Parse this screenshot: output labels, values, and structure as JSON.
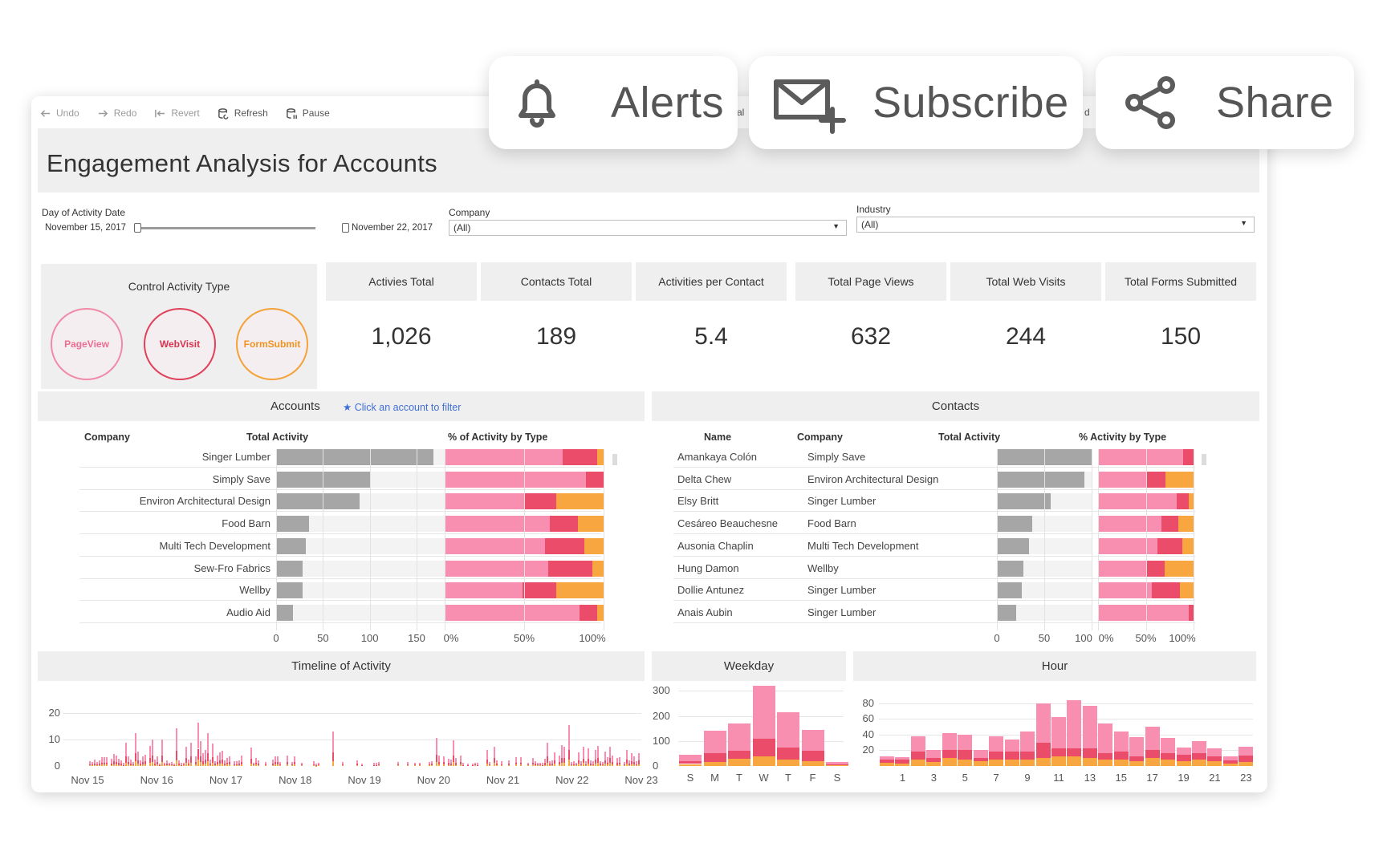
{
  "toolbar": {
    "undo": "Undo",
    "redo": "Redo",
    "revert": "Revert",
    "refresh": "Refresh",
    "pause": "Pause",
    "hidden_fragment_1": "al",
    "hidden_fragment_2": "d"
  },
  "actions": {
    "alerts": "Alerts",
    "subscribe": "Subscribe",
    "share": "Share"
  },
  "dashboard_title": "Engagement Analysis for Accounts",
  "filters": {
    "date_label": "Day of Activity Date",
    "date_start": "November 15, 2017",
    "date_end": "November 22, 2017",
    "company_label": "Company",
    "company_value": "(All)",
    "industry_label": "Industry",
    "industry_value": "(All)"
  },
  "activity_type": {
    "title": "Control Activity Type",
    "buttons": [
      {
        "label": "PageView",
        "color": "#f08aa8"
      },
      {
        "label": "WebVisit",
        "color": "#e0405a"
      },
      {
        "label": "FormSubmit",
        "color": "#f4a23a"
      }
    ]
  },
  "kpis": [
    {
      "label": "Activies Total",
      "value": "1,026"
    },
    {
      "label": "Contacts Total",
      "value": "189"
    },
    {
      "label": "Activities per Contact",
      "value": "5.4"
    },
    {
      "label": "Total Page Views",
      "value": "632"
    },
    {
      "label": "Total Web Visits",
      "value": "244"
    },
    {
      "label": "Total Forms Submitted",
      "value": "150"
    }
  ],
  "colors": {
    "pageview": "#f98fb0",
    "webvisit": "#eb4c6a",
    "formsubmit": "#f8a640",
    "gray": "#a6a6a6"
  },
  "accounts": {
    "title": "Accounts",
    "hint": "Click an account to filter",
    "col_company": "Company",
    "col_total": "Total Activity",
    "col_pct": "% of Activity by Type",
    "x_ticks": [
      "0",
      "50",
      "100",
      "150"
    ],
    "pct_ticks": [
      "0%",
      "50%",
      "100%"
    ]
  },
  "contacts": {
    "title": "Contacts",
    "col_name": "Name",
    "col_company": "Company",
    "col_total": "Total Activity",
    "col_pct": "% Activity by Type",
    "x_ticks": [
      "0",
      "50",
      "100"
    ],
    "pct_ticks": [
      "0%",
      "50%",
      "100%"
    ]
  },
  "timeline": {
    "title": "Timeline of Activity",
    "y_ticks": [
      "20",
      "10",
      "0"
    ],
    "x_labels": [
      "Nov 15",
      "Nov 16",
      "Nov 17",
      "Nov 18",
      "Nov 19",
      "Nov 20",
      "Nov 21",
      "Nov 22",
      "Nov 23"
    ]
  },
  "weekday": {
    "title": "Weekday",
    "y_ticks": [
      "300",
      "200",
      "100",
      "0"
    ]
  },
  "hour": {
    "title": "Hour",
    "y_ticks": [
      "80",
      "60",
      "40",
      "20"
    ]
  },
  "chart_data": [
    {
      "type": "bar",
      "name": "Accounts Total Activity",
      "categories": [
        "Singer Lumber",
        "Simply Save",
        "Environ Architectural Design",
        "Food Barn",
        "Multi Tech Development",
        "Sew-Fro Fabrics",
        "Wellby",
        "Audio Aid"
      ],
      "values": [
        168,
        100,
        89,
        35,
        32,
        28,
        28,
        18
      ],
      "xlim": [
        0,
        180
      ]
    },
    {
      "type": "bar",
      "name": "Accounts % of Activity by Type",
      "categories": [
        "Singer Lumber",
        "Simply Save",
        "Environ Architectural Design",
        "Food Barn",
        "Multi Tech Development",
        "Sew-Fro Fabrics",
        "Wellby",
        "Audio Aid"
      ],
      "series": [
        {
          "name": "PageView",
          "values": [
            74,
            89,
            50,
            66,
            63,
            65,
            49,
            85
          ]
        },
        {
          "name": "WebVisit",
          "values": [
            22,
            11,
            20,
            18,
            25,
            28,
            21,
            11
          ]
        },
        {
          "name": "FormSubmit",
          "values": [
            4,
            0,
            30,
            16,
            12,
            7,
            30,
            4
          ]
        }
      ]
    },
    {
      "type": "bar",
      "name": "Contacts Total Activity",
      "categories": [
        "Amankaya Colón",
        "Delta Chew",
        "Elsy Britt",
        "Cesáreo Beauchesne",
        "Ausonia Chaplin",
        "Hung Damon",
        "Dollie Antunez",
        "Anais Aubin"
      ],
      "companies": [
        "Simply Save",
        "Environ Architectural Design",
        "Singer Lumber",
        "Food Barn",
        "Multi Tech Development",
        "Wellby",
        "Singer Lumber",
        "Singer Lumber"
      ],
      "values": [
        100,
        92,
        57,
        37,
        34,
        28,
        26,
        20
      ],
      "xlim": [
        0,
        100
      ]
    },
    {
      "type": "bar",
      "name": "Contacts % Activity by Type",
      "categories": [
        "Amankaya Colón",
        "Delta Chew",
        "Elsy Britt",
        "Cesáreo Beauchesne",
        "Ausonia Chaplin",
        "Hung Damon",
        "Dollie Antunez",
        "Anais Aubin"
      ],
      "series": [
        {
          "name": "PageView",
          "values": [
            89,
            50,
            82,
            66,
            62,
            50,
            56,
            95
          ]
        },
        {
          "name": "WebVisit",
          "values": [
            11,
            21,
            13,
            18,
            26,
            20,
            30,
            5
          ]
        },
        {
          "name": "FormSubmit",
          "values": [
            0,
            29,
            5,
            16,
            12,
            30,
            14,
            0
          ]
        }
      ]
    },
    {
      "type": "bar",
      "name": "Weekday",
      "categories": [
        "S",
        "M",
        "T",
        "W",
        "T",
        "F",
        "S"
      ],
      "series": [
        {
          "name": "PageView",
          "values": [
            25,
            90,
            110,
            210,
            140,
            85,
            8
          ]
        },
        {
          "name": "WebVisit",
          "values": [
            12,
            35,
            30,
            70,
            50,
            40,
            4
          ]
        },
        {
          "name": "FormSubmit",
          "values": [
            8,
            15,
            30,
            40,
            25,
            20,
            3
          ]
        }
      ],
      "ylim": [
        0,
        330
      ]
    },
    {
      "type": "bar",
      "name": "Hour",
      "categories": [
        "0",
        "1",
        "2",
        "3",
        "4",
        "5",
        "6",
        "7",
        "8",
        "9",
        "10",
        "11",
        "12",
        "13",
        "14",
        "15",
        "16",
        "17",
        "18",
        "19",
        "20",
        "21",
        "22",
        "23"
      ],
      "series": [
        {
          "name": "PageView",
          "values": [
            4,
            3,
            20,
            10,
            22,
            20,
            10,
            20,
            16,
            26,
            50,
            40,
            62,
            55,
            38,
            26,
            25,
            30,
            20,
            10,
            16,
            10,
            5,
            12
          ]
        },
        {
          "name": "WebVisit",
          "values": [
            4,
            5,
            10,
            5,
            10,
            12,
            4,
            10,
            10,
            10,
            20,
            10,
            10,
            12,
            8,
            10,
            6,
            10,
            8,
            8,
            8,
            6,
            4,
            8
          ]
        },
        {
          "name": "FormSubmit",
          "values": [
            4,
            3,
            8,
            5,
            10,
            8,
            6,
            8,
            8,
            8,
            10,
            12,
            12,
            10,
            8,
            8,
            6,
            10,
            8,
            6,
            8,
            6,
            3,
            5
          ]
        }
      ],
      "ylim": [
        0,
        95
      ]
    },
    {
      "type": "bar",
      "name": "Timeline of Activity",
      "x_range": [
        "Nov 15",
        "Nov 23"
      ],
      "ylim": [
        0,
        28
      ],
      "note_series": [
        "PageView",
        "WebVisit",
        "FormSubmit"
      ]
    }
  ]
}
